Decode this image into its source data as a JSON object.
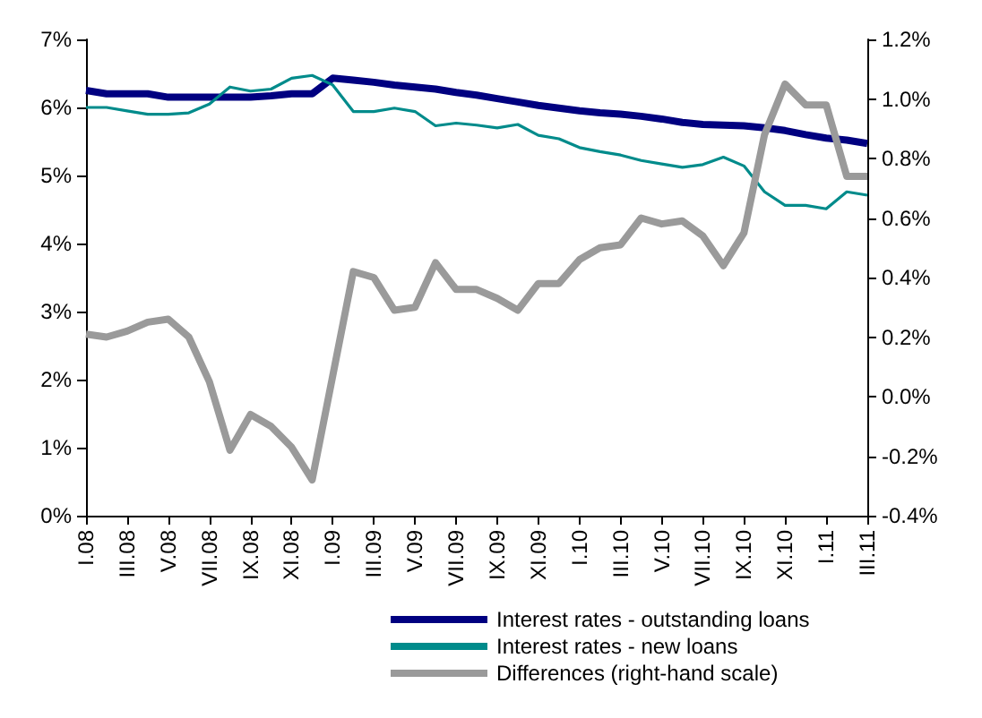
{
  "chart_data": {
    "type": "line",
    "categories": [
      "I.08",
      null,
      "III.08",
      null,
      "V.08",
      null,
      "VII.08",
      null,
      "IX.08",
      null,
      "XI.08",
      null,
      "I.09",
      null,
      "III.09",
      null,
      "V.09",
      null,
      "VII.09",
      null,
      "IX.09",
      null,
      "XI.09",
      null,
      "I.10",
      null,
      "III.10",
      null,
      "V.10",
      null,
      "VII.10",
      null,
      "IX.10",
      null,
      "XI.10",
      null,
      "I.11",
      null,
      "III.11"
    ],
    "series": [
      {
        "name": "Interest rates - outstanding loans",
        "color": "#000080",
        "values": [
          6.25,
          6.2,
          6.2,
          6.2,
          6.15,
          6.15,
          6.15,
          6.15,
          6.15,
          6.17,
          6.2,
          6.2,
          6.43,
          6.4,
          6.37,
          6.33,
          6.3,
          6.27,
          6.22,
          6.18,
          6.13,
          6.08,
          6.03,
          5.99,
          5.95,
          5.92,
          5.9,
          5.87,
          5.83,
          5.78,
          5.75,
          5.74,
          5.73,
          5.7,
          5.66,
          5.6,
          5.55,
          5.52,
          5.47
        ]
      },
      {
        "name": "Interest rates - new loans",
        "color": "#008B8B",
        "values": [
          6.0,
          6.0,
          5.95,
          5.9,
          5.9,
          5.92,
          6.05,
          6.3,
          6.24,
          6.27,
          6.43,
          6.47,
          6.33,
          5.94,
          5.94,
          5.99,
          5.94,
          5.73,
          5.77,
          5.74,
          5.7,
          5.75,
          5.59,
          5.54,
          5.41,
          5.35,
          5.3,
          5.22,
          5.17,
          5.12,
          5.16,
          5.27,
          5.14,
          4.76,
          4.56,
          4.56,
          4.51,
          4.76,
          4.71
        ]
      },
      {
        "name": "Differences (right-hand scale)",
        "color": "#9a9a9a",
        "axis": "y2",
        "values": [
          0.21,
          0.2,
          0.22,
          0.25,
          0.26,
          0.2,
          0.05,
          -0.18,
          -0.06,
          -0.1,
          -0.17,
          -0.28,
          0.07,
          0.42,
          0.4,
          0.29,
          0.3,
          0.45,
          0.36,
          0.36,
          0.33,
          0.29,
          0.38,
          0.38,
          0.46,
          0.5,
          0.51,
          0.6,
          0.58,
          0.59,
          0.54,
          0.44,
          0.55,
          0.88,
          1.05,
          0.98,
          0.98,
          0.74,
          0.74
        ]
      }
    ],
    "ylim": [
      0,
      7
    ],
    "yticks": [
      {
        "value": 0,
        "label": "0%"
      },
      {
        "value": 1,
        "label": "1%"
      },
      {
        "value": 2,
        "label": "2%"
      },
      {
        "value": 3,
        "label": "3%"
      },
      {
        "value": 4,
        "label": "4%"
      },
      {
        "value": 5,
        "label": "5%"
      },
      {
        "value": 6,
        "label": "6%"
      },
      {
        "value": 7,
        "label": "7%"
      }
    ],
    "y2lim": [
      -0.4,
      1.2
    ],
    "y2ticks": [
      {
        "value": -0.4,
        "label": "-0.4%"
      },
      {
        "value": -0.2,
        "label": "-0.2%"
      },
      {
        "value": 0,
        "label": "0.0%"
      },
      {
        "value": 0.2,
        "label": "0.2%"
      },
      {
        "value": 0.4,
        "label": "0.4%"
      },
      {
        "value": 0.6,
        "label": "0.6%"
      },
      {
        "value": 0.8,
        "label": "0.8%"
      },
      {
        "value": 1.0,
        "label": "1.0%"
      },
      {
        "value": 1.2,
        "label": "1.2%"
      }
    ],
    "grid": false,
    "legend": "bottom",
    "marker": "none",
    "line_style": "solid"
  }
}
